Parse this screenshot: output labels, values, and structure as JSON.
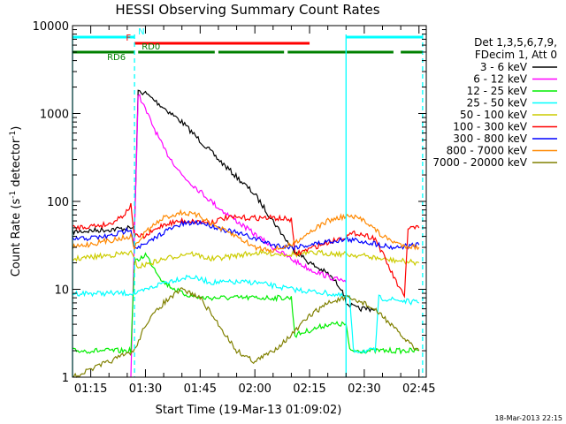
{
  "footer": {
    "timestamp": "18-Mar-2013 22:15"
  },
  "chart_data": {
    "type": "line",
    "title": "HESSI Observing Summary Count Rates",
    "xlabel": "Start Time (19-Mar-13 01:09:02)",
    "ylabel_main": "Count Rate (s",
    "ylabel_sup1": "-1",
    "ylabel_mid": " detector",
    "ylabel_sup2": "-1",
    "ylabel_end": ")",
    "x_range_minutes": [
      "01:10",
      "02:47"
    ],
    "y_scale": "log",
    "ylim": [
      1,
      10000
    ],
    "x_ticks": [
      "01:15",
      "01:30",
      "01:45",
      "02:00",
      "02:15",
      "02:30",
      "02:45"
    ],
    "y_ticks": [
      "1",
      "10",
      "100",
      "1000",
      "10000"
    ],
    "legend_position": "right",
    "legend_header": [
      "Det 1,3,5,6,7,9,",
      "FDecim 1, Att 0"
    ],
    "series": [
      {
        "name": "3 - 6 keV",
        "color": "#000000",
        "points": [
          [
            "01:10",
            45
          ],
          [
            "01:27",
            50
          ],
          [
            "01:28",
            1800
          ],
          [
            "01:30",
            1700
          ],
          [
            "01:40",
            800
          ],
          [
            "01:50",
            300
          ],
          [
            "02:00",
            120
          ],
          [
            "02:05",
            60
          ],
          [
            "02:10",
            30
          ],
          [
            "02:15",
            20
          ],
          [
            "02:20",
            15
          ],
          [
            "02:24",
            10
          ],
          [
            "02:25",
            7
          ],
          [
            "02:28",
            6
          ],
          [
            "02:33",
            6
          ]
        ]
      },
      {
        "name": "6 - 12 keV",
        "color": "#ff00ff",
        "points": [
          [
            "01:26",
            1
          ],
          [
            "01:28",
            1700
          ],
          [
            "01:30",
            1100
          ],
          [
            "01:35",
            400
          ],
          [
            "01:40",
            200
          ],
          [
            "01:45",
            130
          ],
          [
            "01:50",
            85
          ],
          [
            "01:55",
            60
          ],
          [
            "02:00",
            42
          ],
          [
            "02:05",
            30
          ],
          [
            "02:10",
            22
          ],
          [
            "02:15",
            17
          ],
          [
            "02:20",
            14
          ],
          [
            "02:25",
            12
          ]
        ]
      },
      {
        "name": "12 - 25 keV",
        "color": "#00ee00",
        "points": [
          [
            "01:10",
            2
          ],
          [
            "01:26",
            2
          ],
          [
            "01:27",
            20
          ],
          [
            "01:30",
            25
          ],
          [
            "01:35",
            12
          ],
          [
            "01:40",
            9
          ],
          [
            "01:45",
            8
          ],
          [
            "01:50",
            8
          ],
          [
            "02:00",
            8
          ],
          [
            "02:10",
            8
          ],
          [
            "02:11",
            3
          ],
          [
            "02:20",
            4
          ],
          [
            "02:25",
            4
          ],
          [
            "02:26",
            2
          ],
          [
            "02:40",
            2
          ],
          [
            "02:45",
            2
          ]
        ]
      },
      {
        "name": "25 - 50 keV",
        "color": "#00ffff",
        "points": [
          [
            "01:10",
            9
          ],
          [
            "01:26",
            9
          ],
          [
            "01:28",
            9
          ],
          [
            "01:35",
            12
          ],
          [
            "01:42",
            14
          ],
          [
            "01:48",
            12
          ],
          [
            "02:00",
            12
          ],
          [
            "02:10",
            10
          ],
          [
            "02:20",
            9
          ],
          [
            "02:26",
            8
          ],
          [
            "02:27",
            2
          ],
          [
            "02:33",
            2
          ],
          [
            "02:34",
            8
          ],
          [
            "02:45",
            7
          ]
        ]
      },
      {
        "name": "50 - 100 keV",
        "color": "#cccc00",
        "points": [
          [
            "01:10",
            22
          ],
          [
            "01:26",
            26
          ],
          [
            "01:28",
            18
          ],
          [
            "01:35",
            22
          ],
          [
            "01:42",
            26
          ],
          [
            "01:48",
            22
          ],
          [
            "02:00",
            26
          ],
          [
            "02:10",
            25
          ],
          [
            "02:18",
            26
          ],
          [
            "02:25",
            25
          ],
          [
            "02:30",
            24
          ],
          [
            "02:35",
            22
          ],
          [
            "02:45",
            20
          ]
        ]
      },
      {
        "name": "100 - 300 keV",
        "color": "#ff0000",
        "points": [
          [
            "01:10",
            50
          ],
          [
            "01:20",
            55
          ],
          [
            "01:24",
            70
          ],
          [
            "01:26",
            90
          ],
          [
            "01:27",
            40
          ],
          [
            "01:30",
            40
          ],
          [
            "01:35",
            55
          ],
          [
            "01:40",
            60
          ],
          [
            "01:48",
            58
          ],
          [
            "01:52",
            65
          ],
          [
            "02:05",
            65
          ],
          [
            "02:10",
            62
          ],
          [
            "02:11",
            25
          ],
          [
            "02:18",
            32
          ],
          [
            "02:25",
            40
          ],
          [
            "02:28",
            44
          ],
          [
            "02:33",
            38
          ],
          [
            "02:38",
            14
          ],
          [
            "02:41",
            8
          ],
          [
            "02:42",
            50
          ],
          [
            "02:45",
            50
          ]
        ]
      },
      {
        "name": "300 - 800 keV",
        "color": "#0000ff",
        "points": [
          [
            "01:10",
            37
          ],
          [
            "01:20",
            40
          ],
          [
            "01:24",
            45
          ],
          [
            "01:26",
            50
          ],
          [
            "01:27",
            30
          ],
          [
            "01:30",
            32
          ],
          [
            "01:35",
            45
          ],
          [
            "01:40",
            55
          ],
          [
            "01:45",
            58
          ],
          [
            "01:50",
            50
          ],
          [
            "02:00",
            38
          ],
          [
            "02:05",
            32
          ],
          [
            "02:10",
            30
          ],
          [
            "02:15",
            32
          ],
          [
            "02:20",
            35
          ],
          [
            "02:25",
            37
          ],
          [
            "02:30",
            35
          ],
          [
            "02:38",
            30
          ],
          [
            "02:45",
            32
          ]
        ]
      },
      {
        "name": "800 - 7000 keV",
        "color": "#ff8800",
        "points": [
          [
            "01:10",
            30
          ],
          [
            "01:26",
            40
          ],
          [
            "01:27",
            30
          ],
          [
            "01:30",
            45
          ],
          [
            "01:35",
            65
          ],
          [
            "01:40",
            75
          ],
          [
            "01:45",
            68
          ],
          [
            "01:50",
            50
          ],
          [
            "01:55",
            40
          ],
          [
            "02:00",
            30
          ],
          [
            "02:05",
            28
          ],
          [
            "02:10",
            32
          ],
          [
            "02:15",
            45
          ],
          [
            "02:20",
            60
          ],
          [
            "02:25",
            68
          ],
          [
            "02:30",
            62
          ],
          [
            "02:35",
            40
          ],
          [
            "02:40",
            32
          ],
          [
            "02:45",
            30
          ]
        ]
      },
      {
        "name": "7000 - 20000 keV",
        "color": "#808000",
        "points": [
          [
            "01:10",
            1
          ],
          [
            "01:20",
            1.5
          ],
          [
            "01:27",
            2
          ],
          [
            "01:30",
            4
          ],
          [
            "01:35",
            7
          ],
          [
            "01:40",
            10
          ],
          [
            "01:45",
            8
          ],
          [
            "01:50",
            4
          ],
          [
            "01:55",
            2
          ],
          [
            "02:00",
            1.5
          ],
          [
            "02:05",
            2
          ],
          [
            "02:10",
            3
          ],
          [
            "02:15",
            5
          ],
          [
            "02:20",
            7
          ],
          [
            "02:25",
            8
          ],
          [
            "02:30",
            7
          ],
          [
            "02:35",
            5
          ],
          [
            "02:40",
            3
          ],
          [
            "02:45",
            2
          ]
        ]
      }
    ],
    "flag_bars": [
      {
        "label": "N",
        "color": "#00ffff",
        "segments": [
          [
            "01:10",
            "01:27"
          ],
          [
            "02:25",
            "02:46"
          ]
        ]
      },
      {
        "label": "F",
        "color": "#ff0000",
        "segments": [
          [
            "01:27",
            "02:15"
          ]
        ]
      },
      {
        "label": "RD0",
        "color": "#008000",
        "segments": [
          [
            "01:10",
            "01:27"
          ],
          [
            "01:28",
            "01:49"
          ],
          [
            "01:50",
            "02:08"
          ],
          [
            "02:09",
            "02:38"
          ],
          [
            "02:40",
            "02:46"
          ]
        ]
      }
    ],
    "flag_labels": {
      "rd6": "RD6"
    },
    "vlines": [
      {
        "time": "01:10",
        "color": "#00ffff",
        "style": "solid"
      },
      {
        "time": "01:27",
        "color": "#00ffff",
        "style": "dashed"
      },
      {
        "time": "02:25",
        "color": "#00ffff",
        "style": "solid"
      },
      {
        "time": "02:46",
        "color": "#00ffff",
        "style": "dashed"
      }
    ]
  }
}
